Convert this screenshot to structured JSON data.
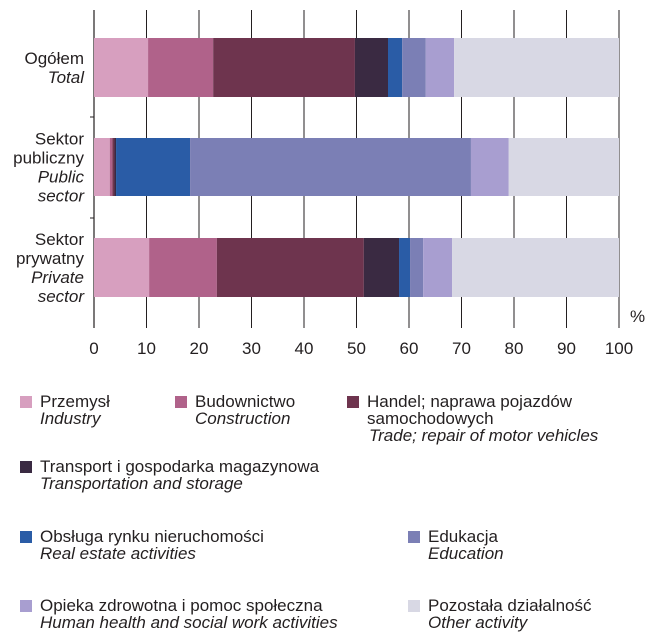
{
  "chart_data": {
    "type": "stacked-bar-horizontal",
    "categories": [
      "Ogółem",
      "Sektor publiczny",
      "Sektor prywatny"
    ],
    "categories_en": [
      "Total",
      "Public sector",
      "Private sector"
    ],
    "series": [
      {
        "name": "Przemysł",
        "name_en": "Industry",
        "color": "#d79fbf",
        "values": [
          10.3,
          3.0,
          10.5
        ]
      },
      {
        "name": "Budownictwo",
        "name_en": "Construction",
        "color": "#b0628a",
        "values": [
          12.4,
          0.5,
          12.9
        ]
      },
      {
        "name": "Handel; naprawa pojazdów samochodowych",
        "name_en": "Trade; repair of motor vehicles",
        "color": "#6e344e",
        "values": [
          27.0,
          0.4,
          28.0
        ]
      },
      {
        "name": "Transport i gospodarka magazynowa",
        "name_en": "Transportation and storage",
        "color": "#3a2a42",
        "values": [
          6.3,
          0.3,
          6.7
        ]
      },
      {
        "name": "Obsługa rynku nieruchomości",
        "name_en": "Real estate activities",
        "color": "#2a5ca6",
        "values": [
          2.7,
          14.1,
          2.1
        ]
      },
      {
        "name": "Edukacja",
        "name_en": "Education",
        "color": "#7b7fb5",
        "values": [
          4.5,
          53.5,
          2.5
        ]
      },
      {
        "name": "Opieka zdrowotna i pomoc społeczna",
        "name_en": "Human health and social work activities",
        "color": "#a89ed0",
        "values": [
          5.4,
          7.2,
          5.5
        ]
      },
      {
        "name": "Pozostała działalność",
        "name_en": "Other activity",
        "color": "#d8d8e4",
        "values": [
          31.4,
          21.0,
          31.8
        ]
      }
    ],
    "xlim": [
      0,
      100
    ],
    "xticks": [
      0,
      10,
      20,
      30,
      40,
      50,
      60,
      70,
      80,
      90,
      100
    ],
    "x_unit": "%",
    "grid": true
  }
}
